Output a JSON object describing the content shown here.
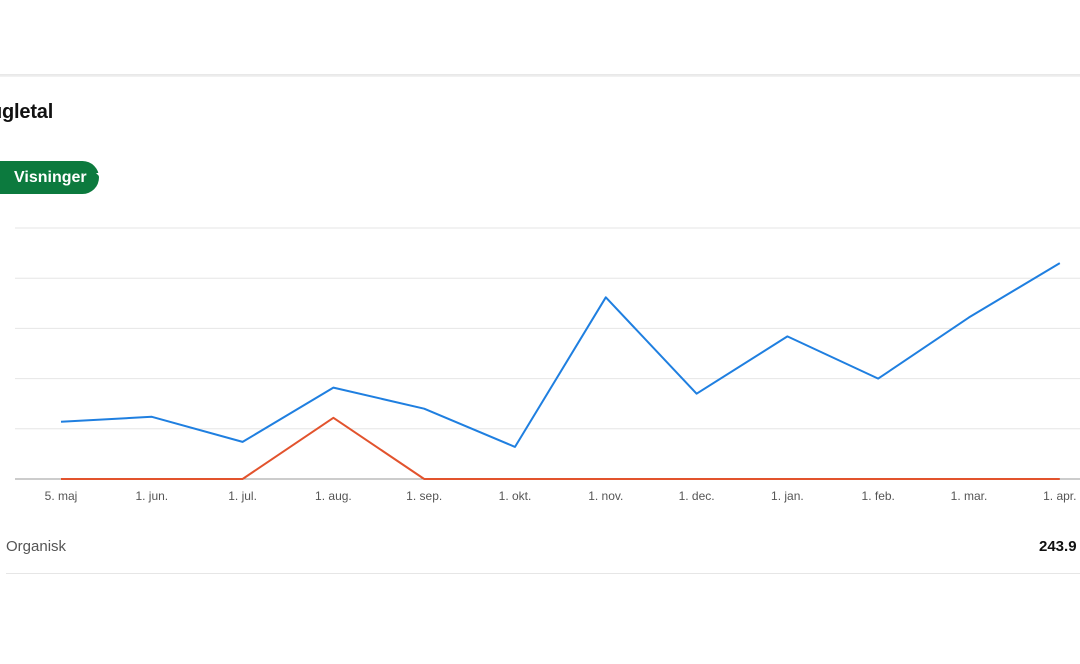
{
  "header": {
    "title": "ugletal"
  },
  "metric_selector": {
    "label": "Visninger"
  },
  "legend": {
    "items": [
      {
        "label": "Organisk",
        "value": "243.9"
      }
    ]
  },
  "colors": {
    "button": "#0c7a3e",
    "series_blue": "#1f7fe0",
    "series_red": "#e2532d",
    "grid": "#e6e6e6"
  },
  "chart_data": {
    "type": "line",
    "categories": [
      "5. maj",
      "1. jun.",
      "1. jul.",
      "1. aug.",
      "1. sep.",
      "1. okt.",
      "1. nov.",
      "1. dec.",
      "1. jan.",
      "1. feb.",
      "1. mar.",
      "1. apr."
    ],
    "series": [
      {
        "values": [
          11.4,
          12.4,
          7.4,
          18.2,
          14.0,
          6.4,
          36.2,
          17.0,
          28.4,
          20.0,
          32.2,
          43.0
        ]
      },
      {
        "values": [
          0,
          0,
          0,
          12.2,
          0,
          0,
          0,
          0,
          0,
          0,
          0,
          0
        ]
      }
    ],
    "ylim": [
      0,
      50
    ],
    "grid": true,
    "title": "",
    "xlabel": "",
    "ylabel": ""
  }
}
